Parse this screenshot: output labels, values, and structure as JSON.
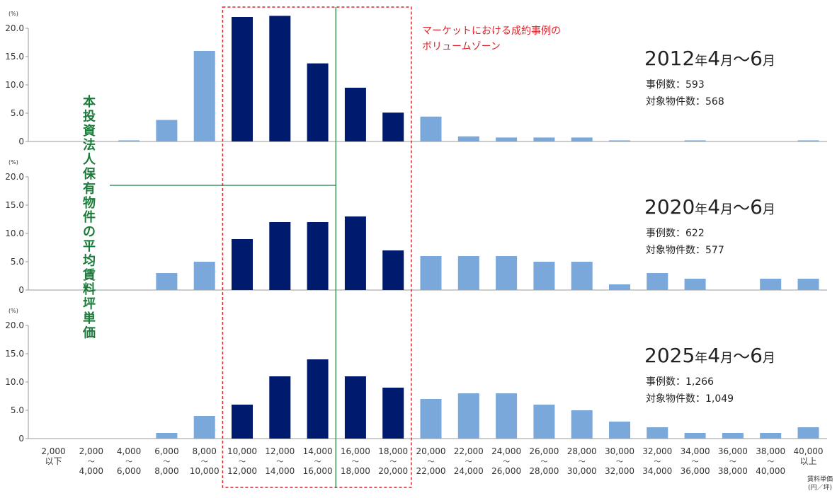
{
  "chart_data": {
    "type": "bar",
    "ylabel": "(%)",
    "ylim": [
      0,
      20
    ],
    "yticks": [
      "0",
      "5.0",
      "10.0",
      "15.0",
      "20.0"
    ],
    "categories": [
      [
        "2,000",
        "以下"
      ],
      [
        "2,000",
        "〜",
        "4,000"
      ],
      [
        "4,000",
        "〜",
        "6,000"
      ],
      [
        "6,000",
        "〜",
        "8,000"
      ],
      [
        "8,000",
        "〜",
        "10,000"
      ],
      [
        "10,000",
        "〜",
        "12,000"
      ],
      [
        "12,000",
        "〜",
        "14,000"
      ],
      [
        "14,000",
        "〜",
        "16,000"
      ],
      [
        "16,000",
        "〜",
        "18,000"
      ],
      [
        "18,000",
        "〜",
        "20,000"
      ],
      [
        "20,000",
        "〜",
        "22,000"
      ],
      [
        "22,000",
        "〜",
        "24,000"
      ],
      [
        "24,000",
        "〜",
        "26,000"
      ],
      [
        "26,000",
        "〜",
        "28,000"
      ],
      [
        "28,000",
        "〜",
        "30,000"
      ],
      [
        "30,000",
        "〜",
        "32,000"
      ],
      [
        "32,000",
        "〜",
        "34,000"
      ],
      [
        "34,000",
        "〜",
        "36,000"
      ],
      [
        "36,000",
        "〜",
        "38,000"
      ],
      [
        "38,000",
        "〜",
        "40,000"
      ],
      [
        "40,000",
        "以上"
      ]
    ],
    "xlabel": [
      "賃料単価",
      "(円／坪)"
    ],
    "highlight_range": [
      5,
      9
    ],
    "colors": {
      "highlight": "#001a6e",
      "normal": "#7aa8da",
      "volume_zone": "#d9252b",
      "average": "#1b7b3a"
    },
    "series": [
      {
        "title": "2012年4月〜6月",
        "title_year": "2012",
        "title_parts": [
          "年",
          "4",
          "月",
          "〜",
          "6",
          "月"
        ],
        "cases_label": "事例数：593",
        "properties_label": "対象物件数：568",
        "values": [
          0,
          0,
          0.2,
          3.8,
          16.0,
          22.0,
          22.2,
          13.8,
          9.5,
          5.1,
          4.4,
          0.9,
          0.7,
          0.7,
          0.7,
          0.2,
          0,
          0.2,
          0,
          0,
          0.2
        ]
      },
      {
        "title": "2020年4月〜6月",
        "title_year": "2020",
        "title_parts": [
          "年",
          "4",
          "月",
          "〜",
          "6",
          "月"
        ],
        "cases_label": "事例数：622",
        "properties_label": "対象物件数：577",
        "values": [
          0,
          0,
          0,
          3.0,
          5.0,
          9.0,
          12.0,
          12.0,
          13.0,
          7.0,
          6.0,
          6.0,
          6.0,
          5.0,
          5.0,
          1.0,
          3.0,
          2.0,
          0,
          2.0,
          2.0
        ]
      },
      {
        "title": "2025年4月〜6月",
        "title_year": "2025",
        "title_parts": [
          "年",
          "4",
          "月",
          "〜",
          "6",
          "月"
        ],
        "cases_label": "事例数：1,266",
        "properties_label": "対象物件数：1,049",
        "values": [
          0,
          0,
          0,
          1.0,
          4.0,
          6.0,
          11.0,
          14.0,
          11.0,
          9.0,
          7.0,
          8.0,
          8.0,
          6.0,
          5.0,
          3.0,
          2.0,
          1.0,
          1.0,
          1.0,
          2.0
        ]
      }
    ],
    "annotations": {
      "volume_zone_lines": [
        "マーケットにおける成約事例の",
        "ボリュームゾーン"
      ],
      "average_label": "本投資法人保有物件の平均賃料坪単価",
      "average_value": 16000
    }
  }
}
